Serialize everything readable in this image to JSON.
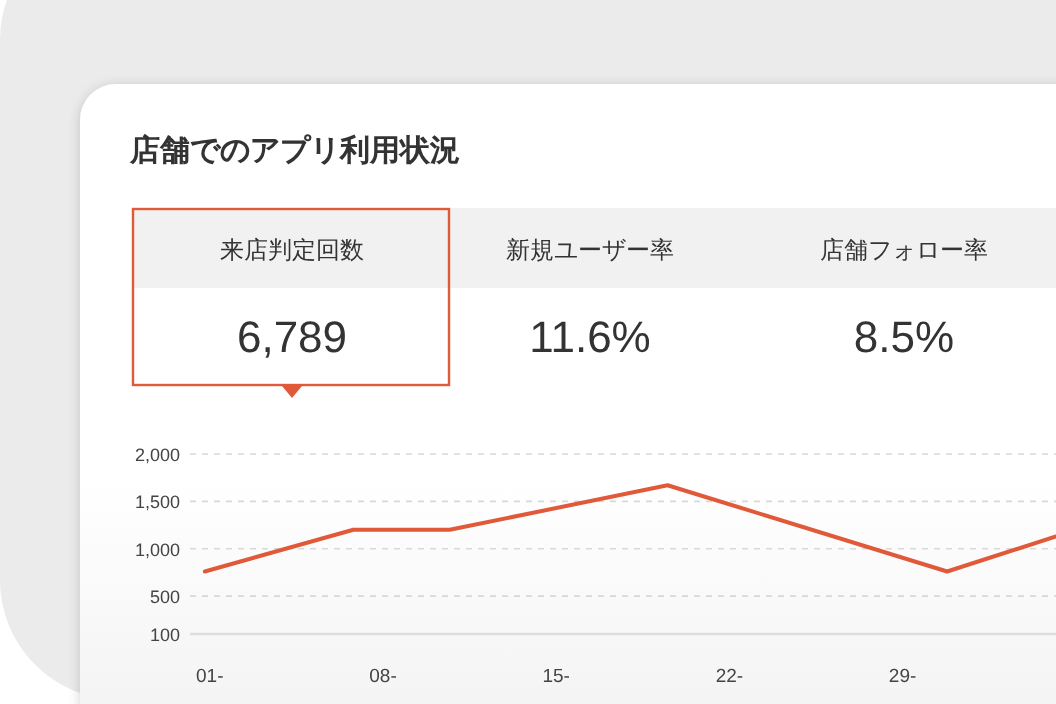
{
  "chart_data": [
    {
      "type": "other",
      "title": "店舗でのアプリ利用状況",
      "categories": [
        "来店判定回数",
        "新規ユーザー率",
        "店舗フォロー率"
      ],
      "value_labels": [
        "6,789",
        "11.6%",
        "8.5%"
      ]
    },
    {
      "type": "line",
      "x": [
        0.8,
        6.8,
        10.7,
        19.5,
        30.8,
        35.2
      ],
      "values": [
        760,
        1200,
        1200,
        1670,
        760,
        1130
      ],
      "color": "#e05a3a",
      "xlim": [
        0.2,
        35.2
      ],
      "xticks": [
        {
          "value": 1,
          "label": "01-"
        },
        {
          "value": 8,
          "label": "08-"
        },
        {
          "value": 15,
          "label": "15-"
        },
        {
          "value": 22,
          "label": "22-"
        },
        {
          "value": 29,
          "label": "29-"
        }
      ],
      "ylim": [
        100,
        2000
      ],
      "yticks": [
        100,
        500,
        {
          "value": 1000,
          "label": "1,000"
        },
        {
          "value": 1500,
          "label": "1,500"
        },
        {
          "value": 2000,
          "label": "2,000"
        }
      ],
      "grid": "y",
      "marker": "none",
      "line_style": "solid"
    }
  ]
}
